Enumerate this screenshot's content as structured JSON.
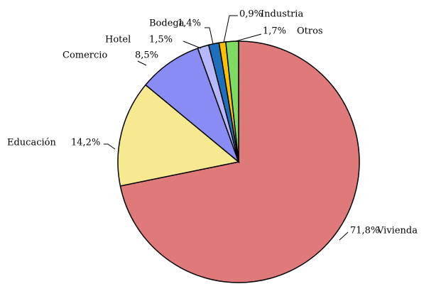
{
  "chart_data": {
    "type": "pie",
    "categories": [
      "Vivienda",
      "Educación",
      "Comercio",
      "Hotel",
      "Bodega",
      "Industria",
      "Otros"
    ],
    "values": [
      71.8,
      14.2,
      8.5,
      1.5,
      1.4,
      0.9,
      1.7
    ],
    "value_labels": [
      "71,8%",
      "14,2%",
      "8,5%",
      "1,5%",
      "1,4%",
      "0,9%",
      "1,7%"
    ],
    "colors": [
      "#e07a7a",
      "#f6e98f",
      "#8a8cf5",
      "#b6b8fb",
      "#1f6fbf",
      "#ffc000",
      "#7fdc62"
    ]
  }
}
